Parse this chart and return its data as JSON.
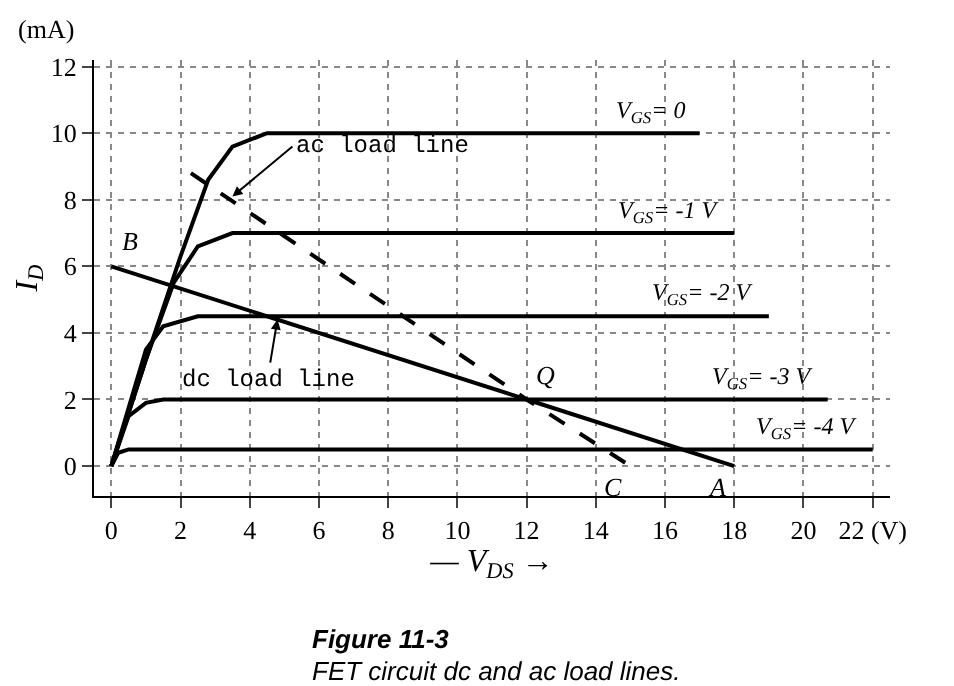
{
  "chart_data": {
    "type": "line",
    "xlabel": "— V$_{DS}$ →",
    "ylabel": "I$_{D}$",
    "xlim": [
      -0.5,
      22.5
    ],
    "ylim": [
      -0.9,
      12.2
    ],
    "xticks": [
      0,
      2,
      4,
      6,
      8,
      10,
      12,
      14,
      16,
      18,
      20,
      {
        "value": 22,
        "label": "22 (V)"
      }
    ],
    "yticks": [
      0,
      2,
      4,
      6,
      8,
      10,
      12
    ],
    "grid": true,
    "legend": false,
    "marker": "none",
    "line_style": "solid",
    "series": [
      {
        "name": "V$_{GS}$= 0",
        "color": "#000000",
        "x": [
          0,
          1,
          2,
          2.8,
          3.5,
          4.5,
          17
        ],
        "values": [
          0,
          3.2,
          6.3,
          8.6,
          9.6,
          10,
          10
        ]
      },
      {
        "name": "V$_{GS}$= -1 V",
        "color": "#000000",
        "x": [
          0,
          1,
          1.8,
          2.5,
          3.5,
          18
        ],
        "values": [
          0,
          3.2,
          5.5,
          6.6,
          7,
          7
        ]
      },
      {
        "name": "V$_{GS}$= -2 V",
        "color": "#000000",
        "x": [
          0,
          1,
          1.5,
          2.5,
          19
        ],
        "values": [
          0,
          3.5,
          4.2,
          4.5,
          4.5
        ]
      },
      {
        "name": "V$_{GS}$= -3 V",
        "color": "#000000",
        "x": [
          0,
          0.5,
          1,
          1.5,
          20.7
        ],
        "values": [
          0,
          1.5,
          1.9,
          2,
          2
        ]
      },
      {
        "name": "V$_{GS}$= -4 V",
        "color": "#000000",
        "x": [
          0,
          0.2,
          0.5,
          22
        ],
        "values": [
          0,
          0.4,
          0.5,
          0.5
        ]
      },
      {
        "color": "#000000",
        "x": [
          0,
          12,
          18
        ],
        "values": [
          6,
          2,
          0
        ]
      },
      {
        "color": "#000000",
        "line_style": "dashed",
        "x": [
          2.3,
          12,
          15
        ],
        "values": [
          8.8,
          2,
          0
        ]
      }
    ],
    "annotations": [
      "(mA)",
      {
        "text": "ac load line",
        "x": 3.5,
        "y": 8.1
      },
      {
        "text": "dc load line",
        "x": 4.8,
        "y": 4.4
      },
      {
        "text": "B",
        "x": 0,
        "y": 6
      },
      {
        "text": "Q",
        "x": 12,
        "y": 2
      },
      {
        "text": "C",
        "x": 15,
        "y": 0
      },
      {
        "text": "A",
        "x": 18,
        "y": 0
      },
      "Figure 11-3",
      "FET circuit dc and ac load lines."
    ]
  }
}
